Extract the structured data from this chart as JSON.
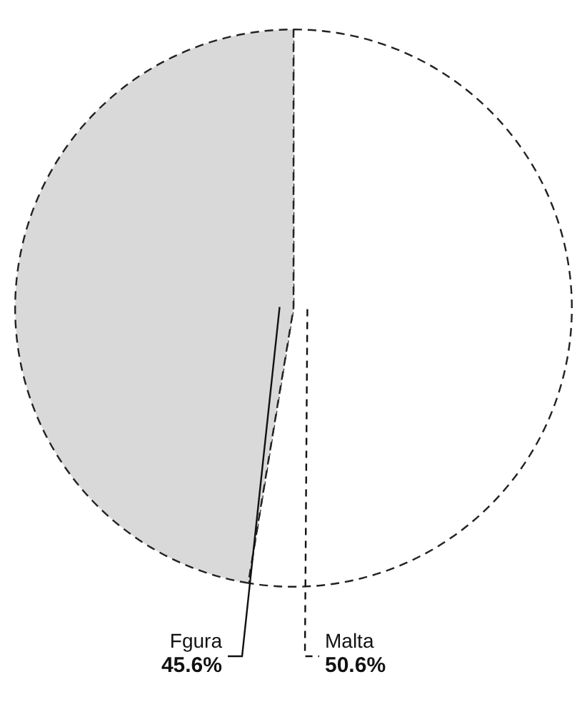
{
  "chart_data": {
    "type": "pie",
    "categories": [
      "Malta",
      "Fgura"
    ],
    "values": [
      50.6,
      45.6
    ],
    "colors": [
      "#ffffff",
      "#d9d9d9"
    ],
    "value_labels": [
      "50.6%",
      "45.6%"
    ],
    "legend": false
  }
}
